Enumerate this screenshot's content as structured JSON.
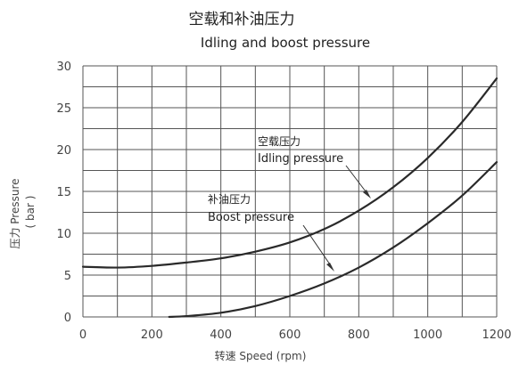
{
  "chart_data": {
    "type": "line",
    "title": "空载和补油压力",
    "subtitle": "Idling and boost pressure",
    "xlabel": "转速 Speed (rpm)",
    "ylabel": "压力 Pressure",
    "ylabel_unit": "( bar )",
    "xlim": [
      0,
      1200
    ],
    "ylim": [
      0,
      30
    ],
    "x_ticks": [
      "0",
      "200",
      "400",
      "600",
      "800",
      "1000",
      "1200"
    ],
    "y_ticks": [
      "0",
      "5",
      "10",
      "15",
      "20",
      "25",
      "30"
    ],
    "x_grid_step": 100,
    "y_grid_step": 2.5,
    "grid": true,
    "highlight_gridline_x": 1100,
    "series": [
      {
        "name": "空载压力 Idling pressure",
        "label_zh": "空载压力",
        "label_en": "Idling pressure",
        "x": [
          0,
          100,
          200,
          300,
          400,
          500,
          600,
          700,
          800,
          900,
          1000,
          1100,
          1200
        ],
        "y": [
          6.0,
          5.9,
          6.1,
          6.5,
          7.0,
          7.8,
          8.9,
          10.5,
          12.7,
          15.5,
          19.0,
          23.3,
          28.5
        ]
      },
      {
        "name": "补油压力 Boost pressure",
        "label_zh": "补油压力",
        "label_en": "Boost pressure",
        "x": [
          250,
          300,
          400,
          500,
          600,
          700,
          800,
          900,
          1000,
          1100,
          1200
        ],
        "y": [
          0.0,
          0.1,
          0.5,
          1.3,
          2.5,
          4.0,
          5.9,
          8.3,
          11.2,
          14.5,
          18.5
        ]
      }
    ]
  }
}
